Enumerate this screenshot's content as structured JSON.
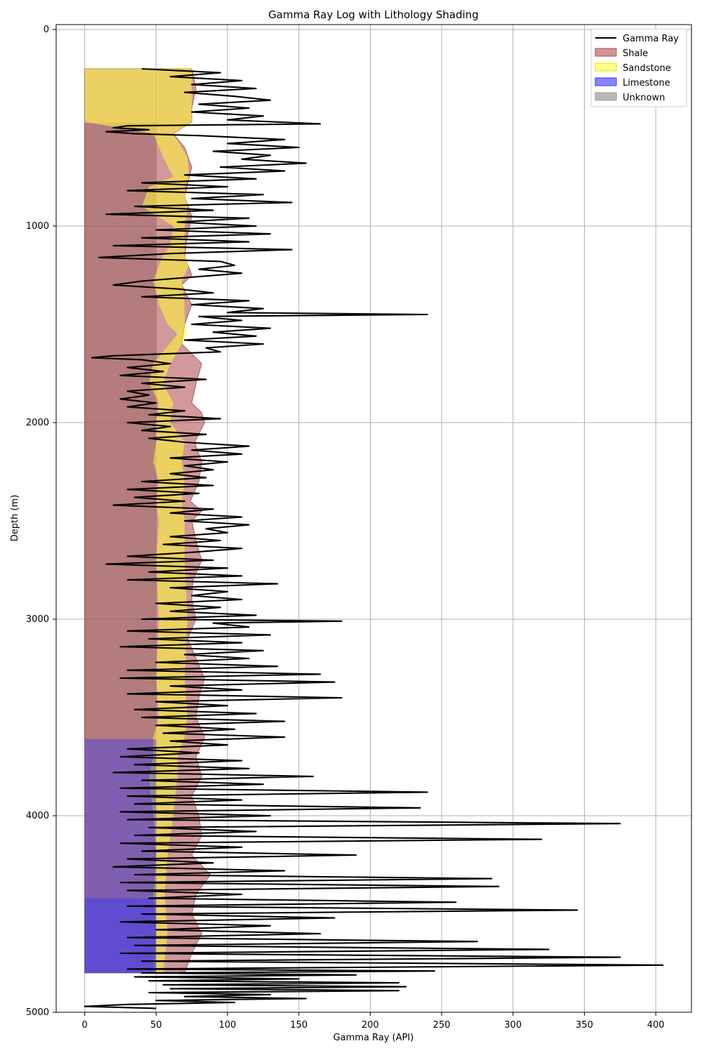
{
  "chart_data": {
    "type": "line",
    "title": "Gamma Ray Log with Lithology Shading",
    "xlabel": "Gamma Ray (API)",
    "ylabel": "Depth (m)",
    "xlim": [
      -20,
      425
    ],
    "ylim": [
      5000,
      -25
    ],
    "x_ticks": [
      0,
      50,
      100,
      150,
      200,
      250,
      300,
      350,
      400
    ],
    "y_ticks": [
      0,
      1000,
      2000,
      3000,
      4000,
      5000
    ],
    "grid": true,
    "legend": {
      "placement": "top-right",
      "entries": [
        {
          "name": "Gamma Ray",
          "kind": "line",
          "color": "#000000"
        },
        {
          "name": "Shale",
          "kind": "patch",
          "color": "#b05050"
        },
        {
          "name": "Sandstone",
          "kind": "patch",
          "color": "#ffff33"
        },
        {
          "name": "Limestone",
          "kind": "patch",
          "color": "#3333ff"
        },
        {
          "name": "Unknown",
          "kind": "patch",
          "color": "#808080"
        }
      ]
    },
    "shale_band": [
      [
        200,
        75
      ],
      [
        300,
        78
      ],
      [
        400,
        75
      ],
      [
        470,
        75
      ],
      [
        530,
        62
      ],
      [
        600,
        70
      ],
      [
        700,
        75
      ],
      [
        850,
        70
      ],
      [
        950,
        75
      ],
      [
        1050,
        72
      ],
      [
        1150,
        70
      ],
      [
        1250,
        75
      ],
      [
        1300,
        68
      ],
      [
        1400,
        75
      ],
      [
        1500,
        70
      ],
      [
        1600,
        68
      ],
      [
        1700,
        82
      ],
      [
        1800,
        78
      ],
      [
        1900,
        75
      ],
      [
        1950,
        82
      ],
      [
        2000,
        84
      ],
      [
        2100,
        77
      ],
      [
        2200,
        82
      ],
      [
        2300,
        80
      ],
      [
        2400,
        74
      ],
      [
        2450,
        82
      ],
      [
        2500,
        75
      ],
      [
        2600,
        78
      ],
      [
        2700,
        82
      ],
      [
        2800,
        76
      ],
      [
        2900,
        75
      ],
      [
        3000,
        78
      ],
      [
        3100,
        72
      ],
      [
        3200,
        78
      ],
      [
        3300,
        84
      ],
      [
        3400,
        80
      ],
      [
        3500,
        78
      ],
      [
        3600,
        84
      ],
      [
        3700,
        78
      ],
      [
        3800,
        82
      ],
      [
        3900,
        75
      ],
      [
        4000,
        80
      ],
      [
        4100,
        82
      ],
      [
        4200,
        75
      ],
      [
        4300,
        88
      ],
      [
        4400,
        78
      ],
      [
        4500,
        75
      ],
      [
        4600,
        82
      ],
      [
        4700,
        75
      ],
      [
        4800,
        70
      ]
    ],
    "sandstone_band": [
      [
        200,
        0,
        75
      ],
      [
        470,
        0,
        75
      ],
      [
        530,
        48,
        62
      ],
      [
        650,
        55,
        72
      ],
      [
        750,
        62,
        73
      ],
      [
        800,
        45,
        70
      ],
      [
        900,
        40,
        72
      ],
      [
        1000,
        62,
        70
      ],
      [
        1100,
        60,
        70
      ],
      [
        1150,
        55,
        70
      ],
      [
        1200,
        52,
        73
      ],
      [
        1280,
        48,
        68
      ],
      [
        1400,
        52,
        70
      ],
      [
        1500,
        58,
        70
      ],
      [
        1550,
        65,
        72
      ],
      [
        1700,
        48,
        60
      ],
      [
        1800,
        45,
        55
      ],
      [
        1900,
        52,
        62
      ],
      [
        2000,
        50,
        60
      ],
      [
        2100,
        50,
        70
      ],
      [
        2200,
        48,
        68
      ],
      [
        2300,
        52,
        70
      ],
      [
        2400,
        50,
        68
      ],
      [
        2500,
        52,
        70
      ],
      [
        2700,
        50,
        70
      ],
      [
        3000,
        52,
        72
      ],
      [
        3300,
        50,
        70
      ],
      [
        3500,
        52,
        72
      ],
      [
        3600,
        48,
        70
      ],
      [
        3700,
        48,
        65
      ],
      [
        3800,
        45,
        65
      ],
      [
        4000,
        48,
        62
      ],
      [
        4200,
        50,
        58
      ],
      [
        4400,
        48,
        56
      ],
      [
        4600,
        50,
        58
      ],
      [
        4800,
        48,
        55
      ]
    ],
    "unknown_zone": {
      "top": 475,
      "bottom": 4800
    },
    "limestone_zones": [
      {
        "top": 3610,
        "bottom": 4420,
        "alpha": 0.4
      },
      {
        "top": 4420,
        "bottom": 4800,
        "alpha": 0.65
      }
    ],
    "gamma_ray": [
      [
        200,
        40
      ],
      [
        220,
        95
      ],
      [
        240,
        60
      ],
      [
        260,
        110
      ],
      [
        280,
        75
      ],
      [
        300,
        120
      ],
      [
        320,
        70
      ],
      [
        340,
        105
      ],
      [
        360,
        130
      ],
      [
        380,
        80
      ],
      [
        400,
        115
      ],
      [
        420,
        75
      ],
      [
        440,
        125
      ],
      [
        460,
        100
      ],
      [
        480,
        165
      ],
      [
        490,
        30
      ],
      [
        500,
        20
      ],
      [
        510,
        45
      ],
      [
        520,
        15
      ],
      [
        530,
        35
      ],
      [
        540,
        80
      ],
      [
        560,
        140
      ],
      [
        580,
        100
      ],
      [
        600,
        150
      ],
      [
        620,
        90
      ],
      [
        640,
        130
      ],
      [
        660,
        110
      ],
      [
        680,
        155
      ],
      [
        700,
        95
      ],
      [
        720,
        140
      ],
      [
        740,
        70
      ],
      [
        760,
        120
      ],
      [
        780,
        40
      ],
      [
        800,
        100
      ],
      [
        820,
        30
      ],
      [
        840,
        125
      ],
      [
        860,
        75
      ],
      [
        880,
        145
      ],
      [
        900,
        35
      ],
      [
        920,
        90
      ],
      [
        940,
        15
      ],
      [
        960,
        115
      ],
      [
        980,
        65
      ],
      [
        1000,
        120
      ],
      [
        1020,
        50
      ],
      [
        1040,
        130
      ],
      [
        1060,
        40
      ],
      [
        1080,
        115
      ],
      [
        1100,
        20
      ],
      [
        1120,
        145
      ],
      [
        1140,
        60
      ],
      [
        1160,
        10
      ],
      [
        1180,
        95
      ],
      [
        1200,
        105
      ],
      [
        1220,
        80
      ],
      [
        1240,
        110
      ],
      [
        1260,
        75
      ],
      [
        1280,
        40
      ],
      [
        1300,
        20
      ],
      [
        1320,
        65
      ],
      [
        1340,
        90
      ],
      [
        1360,
        40
      ],
      [
        1380,
        115
      ],
      [
        1400,
        75
      ],
      [
        1420,
        125
      ],
      [
        1440,
        100
      ],
      [
        1450,
        240
      ],
      [
        1460,
        80
      ],
      [
        1480,
        110
      ],
      [
        1500,
        75
      ],
      [
        1520,
        130
      ],
      [
        1540,
        90
      ],
      [
        1560,
        120
      ],
      [
        1580,
        70
      ],
      [
        1600,
        125
      ],
      [
        1620,
        85
      ],
      [
        1640,
        95
      ],
      [
        1660,
        20
      ],
      [
        1670,
        5
      ],
      [
        1680,
        40
      ],
      [
        1700,
        60
      ],
      [
        1720,
        30
      ],
      [
        1740,
        55
      ],
      [
        1760,
        25
      ],
      [
        1780,
        85
      ],
      [
        1800,
        40
      ],
      [
        1820,
        70
      ],
      [
        1840,
        30
      ],
      [
        1860,
        45
      ],
      [
        1880,
        25
      ],
      [
        1900,
        50
      ],
      [
        1920,
        30
      ],
      [
        1940,
        70
      ],
      [
        1960,
        45
      ],
      [
        1980,
        95
      ],
      [
        2000,
        30
      ],
      [
        2020,
        60
      ],
      [
        2040,
        40
      ],
      [
        2060,
        85
      ],
      [
        2080,
        45
      ],
      [
        2100,
        70
      ],
      [
        2120,
        115
      ],
      [
        2140,
        75
      ],
      [
        2160,
        110
      ],
      [
        2180,
        60
      ],
      [
        2200,
        100
      ],
      [
        2220,
        70
      ],
      [
        2240,
        90
      ],
      [
        2260,
        60
      ],
      [
        2280,
        85
      ],
      [
        2300,
        40
      ],
      [
        2320,
        90
      ],
      [
        2340,
        30
      ],
      [
        2360,
        80
      ],
      [
        2380,
        35
      ],
      [
        2400,
        70
      ],
      [
        2420,
        20
      ],
      [
        2440,
        90
      ],
      [
        2460,
        60
      ],
      [
        2480,
        110
      ],
      [
        2500,
        70
      ],
      [
        2520,
        115
      ],
      [
        2540,
        85
      ],
      [
        2560,
        100
      ],
      [
        2580,
        60
      ],
      [
        2600,
        95
      ],
      [
        2620,
        55
      ],
      [
        2640,
        110
      ],
      [
        2660,
        75
      ],
      [
        2680,
        30
      ],
      [
        2700,
        90
      ],
      [
        2720,
        15
      ],
      [
        2740,
        100
      ],
      [
        2760,
        45
      ],
      [
        2780,
        110
      ],
      [
        2800,
        30
      ],
      [
        2820,
        135
      ],
      [
        2840,
        60
      ],
      [
        2860,
        100
      ],
      [
        2880,
        75
      ],
      [
        2900,
        110
      ],
      [
        2920,
        50
      ],
      [
        2940,
        95
      ],
      [
        2960,
        60
      ],
      [
        2980,
        120
      ],
      [
        3000,
        40
      ],
      [
        3010,
        180
      ],
      [
        3020,
        90
      ],
      [
        3040,
        115
      ],
      [
        3060,
        30
      ],
      [
        3080,
        130
      ],
      [
        3100,
        45
      ],
      [
        3120,
        110
      ],
      [
        3140,
        25
      ],
      [
        3160,
        125
      ],
      [
        3180,
        70
      ],
      [
        3200,
        115
      ],
      [
        3220,
        50
      ],
      [
        3240,
        135
      ],
      [
        3260,
        30
      ],
      [
        3280,
        165
      ],
      [
        3300,
        25
      ],
      [
        3320,
        175
      ],
      [
        3340,
        60
      ],
      [
        3360,
        110
      ],
      [
        3380,
        30
      ],
      [
        3400,
        180
      ],
      [
        3420,
        50
      ],
      [
        3440,
        100
      ],
      [
        3460,
        35
      ],
      [
        3480,
        120
      ],
      [
        3500,
        40
      ],
      [
        3520,
        140
      ],
      [
        3540,
        50
      ],
      [
        3560,
        105
      ],
      [
        3580,
        55
      ],
      [
        3600,
        140
      ],
      [
        3620,
        60
      ],
      [
        3640,
        100
      ],
      [
        3660,
        30
      ],
      [
        3680,
        80
      ],
      [
        3700,
        25
      ],
      [
        3720,
        110
      ],
      [
        3740,
        35
      ],
      [
        3760,
        115
      ],
      [
        3780,
        20
      ],
      [
        3800,
        160
      ],
      [
        3820,
        40
      ],
      [
        3840,
        125
      ],
      [
        3860,
        25
      ],
      [
        3880,
        240
      ],
      [
        3900,
        30
      ],
      [
        3920,
        110
      ],
      [
        3940,
        35
      ],
      [
        3960,
        235
      ],
      [
        3980,
        25
      ],
      [
        4000,
        130
      ],
      [
        4020,
        30
      ],
      [
        4040,
        375
      ],
      [
        4060,
        45
      ],
      [
        4080,
        120
      ],
      [
        4100,
        35
      ],
      [
        4120,
        320
      ],
      [
        4140,
        25
      ],
      [
        4160,
        110
      ],
      [
        4180,
        40
      ],
      [
        4200,
        190
      ],
      [
        4220,
        30
      ],
      [
        4240,
        90
      ],
      [
        4260,
        20
      ],
      [
        4280,
        140
      ],
      [
        4300,
        35
      ],
      [
        4320,
        285
      ],
      [
        4340,
        25
      ],
      [
        4360,
        290
      ],
      [
        4380,
        30
      ],
      [
        4400,
        110
      ],
      [
        4420,
        45
      ],
      [
        4440,
        260
      ],
      [
        4460,
        30
      ],
      [
        4480,
        345
      ],
      [
        4500,
        40
      ],
      [
        4520,
        175
      ],
      [
        4540,
        25
      ],
      [
        4560,
        130
      ],
      [
        4580,
        50
      ],
      [
        4600,
        165
      ],
      [
        4620,
        30
      ],
      [
        4640,
        275
      ],
      [
        4660,
        35
      ],
      [
        4680,
        325
      ],
      [
        4700,
        25
      ],
      [
        4720,
        375
      ],
      [
        4740,
        40
      ],
      [
        4760,
        405
      ],
      [
        4780,
        30
      ],
      [
        4790,
        245
      ],
      [
        4800,
        40
      ],
      [
        4810,
        190
      ],
      [
        4820,
        35
      ],
      [
        4830,
        150
      ],
      [
        4840,
        45
      ],
      [
        4850,
        220
      ],
      [
        4860,
        55
      ],
      [
        4870,
        225
      ],
      [
        4880,
        60
      ],
      [
        4890,
        220
      ],
      [
        4900,
        45
      ],
      [
        4910,
        130
      ],
      [
        4920,
        70
      ],
      [
        4930,
        155
      ],
      [
        4940,
        50
      ],
      [
        4950,
        105
      ],
      [
        4960,
        30
      ],
      [
        4970,
        0
      ],
      [
        4980,
        50
      ]
    ]
  }
}
